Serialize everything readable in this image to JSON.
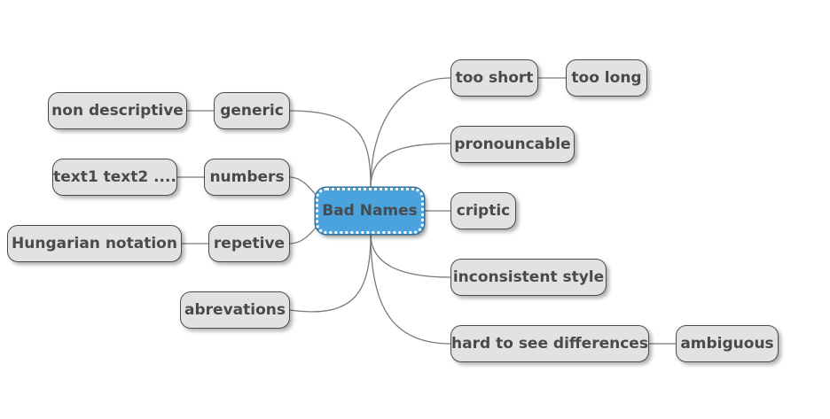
{
  "mindmap": {
    "root": "Bad Names",
    "right": [
      {
        "label": "too short",
        "child": "too long"
      },
      {
        "label": "pronouncable"
      },
      {
        "label": "criptic"
      },
      {
        "label": "inconsistent style"
      },
      {
        "label": "hard to see differences",
        "child": "ambiguous"
      }
    ],
    "left": [
      {
        "label": "generic",
        "child": "non descriptive"
      },
      {
        "label": "numbers",
        "child": "text1 text2 ...."
      },
      {
        "label": "repetive",
        "child": "Hungarian notation"
      },
      {
        "label": "abrevations"
      }
    ]
  },
  "colors": {
    "root_fill": "#4aa3dd",
    "node_fill": "#e2e2e2",
    "node_border": "#4a4a4a",
    "edge": "#7a7a7a"
  }
}
